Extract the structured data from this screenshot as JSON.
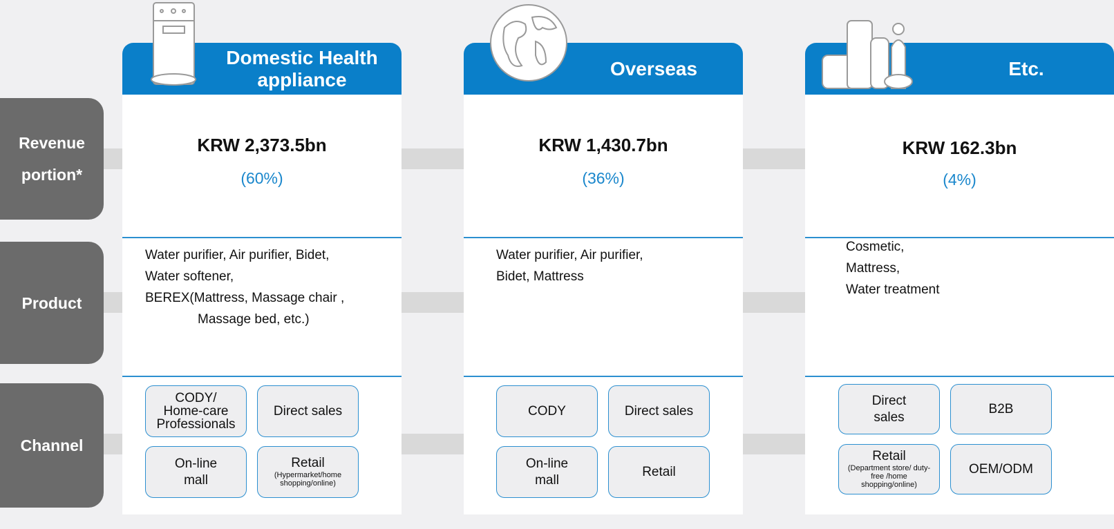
{
  "row_labels": [
    "Revenue portion*",
    "Product",
    "Channel"
  ],
  "columns": [
    {
      "title": "Domestic Health appliance",
      "revenue": "KRW 2,373.5bn",
      "share": "(60%)",
      "products": [
        "Water purifier, Air purifier, Bidet,",
        "Water softener,",
        "BEREX(Mattress, Massage chair ,",
        "Massage bed, etc.)"
      ],
      "channels": [
        {
          "lines": [
            "CODY/",
            "Home-care",
            "Professionals"
          ]
        },
        {
          "lines": [
            "Direct sales"
          ]
        },
        {
          "lines": [
            "On-line",
            "mall"
          ]
        },
        {
          "lines": [
            "Retail"
          ],
          "note": "(Hypermarket/home shopping/online)"
        }
      ]
    },
    {
      "title": "Overseas",
      "revenue": "KRW 1,430.7bn",
      "share": "(36%)",
      "products": [
        "Water purifier, Air purifier,",
        "Bidet, Mattress"
      ],
      "channels": [
        {
          "lines": [
            "CODY"
          ]
        },
        {
          "lines": [
            "Direct sales"
          ]
        },
        {
          "lines": [
            "On-line",
            "mall"
          ]
        },
        {
          "lines": [
            "Retail"
          ]
        }
      ]
    },
    {
      "title": "Etc.",
      "revenue": "KRW 162.3bn",
      "share": "(4%)",
      "products": [
        "Cosmetic,",
        "Mattress,",
        "Water treatment"
      ],
      "channels": [
        {
          "lines": [
            "Direct",
            "sales"
          ]
        },
        {
          "lines": [
            "B2B"
          ]
        },
        {
          "lines": [
            "Retail"
          ],
          "note": "(Department store/ duty-free /home shopping/online)"
        },
        {
          "lines": [
            "OEM/ODM"
          ]
        }
      ]
    }
  ]
}
